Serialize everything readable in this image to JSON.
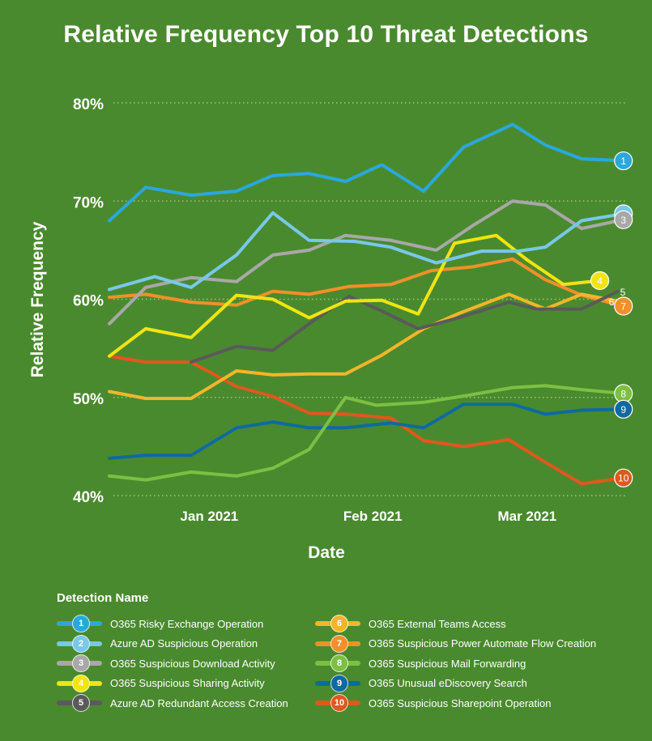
{
  "chart_data": {
    "type": "line",
    "title": "Relative Frequency Top 10 Threat Detections",
    "xlabel": "Date",
    "ylabel": "Relative Frequency",
    "ylim": [
      40,
      80
    ],
    "yticks": [
      "40%",
      "50%",
      "60%",
      "70%",
      "80%"
    ],
    "ytick_values": [
      40,
      50,
      60,
      70,
      80
    ],
    "xticks": [
      "Jan 2021",
      "Feb 2021",
      "Mar 2021"
    ],
    "xtick_positions": [
      5.5,
      14.5,
      23.0
    ],
    "x": [
      0,
      1,
      2,
      3,
      4,
      5,
      6,
      7,
      8,
      9,
      10,
      11,
      12,
      13,
      14,
      15,
      16,
      17,
      18,
      19,
      20,
      21,
      22,
      23,
      24,
      25,
      26,
      27,
      28
    ],
    "grid": "horizontal dotted",
    "legend_title": "Detection Name",
    "series": [
      {
        "rank": "1",
        "name": "O365 Risky Exchange Operation",
        "color": "#2aa8dc",
        "points": [
          [
            0,
            68
          ],
          [
            2,
            71.4
          ],
          [
            4.5,
            70.6
          ],
          [
            7,
            71
          ],
          [
            9,
            72.6
          ],
          [
            11,
            72.8
          ],
          [
            13,
            72
          ],
          [
            15,
            73.7
          ],
          [
            17.3,
            71
          ],
          [
            19.5,
            75.5
          ],
          [
            22.2,
            77.8
          ],
          [
            24,
            75.7
          ],
          [
            26,
            74.3
          ],
          [
            28.3,
            74.1
          ]
        ]
      },
      {
        "rank": "2",
        "name": "Azure AD Suspicious Operation",
        "color": "#78c8ea",
        "points": [
          [
            0,
            61
          ],
          [
            2.5,
            62.3
          ],
          [
            4.5,
            61.2
          ],
          [
            7,
            64.5
          ],
          [
            9,
            68.8
          ],
          [
            11,
            66
          ],
          [
            13.5,
            65.9
          ],
          [
            15.5,
            65.3
          ],
          [
            18,
            63.7
          ],
          [
            20.5,
            64.9
          ],
          [
            22.5,
            64.9
          ],
          [
            24,
            65.3
          ],
          [
            26,
            68
          ],
          [
            28.3,
            68.7
          ]
        ]
      },
      {
        "rank": "3",
        "name": "O365 Suspicious Download Activity",
        "color": "#a8a8a8",
        "points": [
          [
            0,
            57.5
          ],
          [
            2,
            61.2
          ],
          [
            4.5,
            62.2
          ],
          [
            7,
            61.8
          ],
          [
            9,
            64.5
          ],
          [
            11,
            65
          ],
          [
            13,
            66.5
          ],
          [
            15.5,
            66
          ],
          [
            18,
            65
          ],
          [
            20,
            67.5
          ],
          [
            22.2,
            70
          ],
          [
            24,
            69.6
          ],
          [
            26,
            67.2
          ],
          [
            28.3,
            68.1
          ]
        ]
      },
      {
        "rank": "4",
        "name": "O365 Suspicious Sharing Activity",
        "color": "#f2e410",
        "points": [
          [
            0,
            54.2
          ],
          [
            2,
            57
          ],
          [
            4.5,
            56.1
          ],
          [
            7,
            60.4
          ],
          [
            9,
            60
          ],
          [
            11,
            58.1
          ],
          [
            13,
            59.8
          ],
          [
            15,
            59.9
          ],
          [
            17,
            58.5
          ],
          [
            19,
            65.7
          ],
          [
            21.3,
            66.5
          ],
          [
            23,
            64
          ],
          [
            25,
            61.5
          ],
          [
            27,
            61.9
          ]
        ]
      },
      {
        "rank": "5",
        "name": "Azure AD Redundant Access Creation",
        "color": "#5a5a5a",
        "points": [
          [
            4.5,
            53.6
          ],
          [
            7,
            55.2
          ],
          [
            9,
            54.8
          ],
          [
            11,
            57.5
          ],
          [
            13.2,
            60.3
          ],
          [
            15,
            58.8
          ],
          [
            17,
            57
          ],
          [
            19,
            58
          ],
          [
            22,
            59.7
          ],
          [
            23.5,
            59
          ],
          [
            26,
            59
          ],
          [
            28,
            60.8
          ]
        ]
      },
      {
        "rank": "6",
        "name": "O365 External Teams Access",
        "color": "#f4b52a",
        "points": [
          [
            0,
            50.6
          ],
          [
            2,
            49.9
          ],
          [
            4.5,
            49.9
          ],
          [
            7,
            52.7
          ],
          [
            9,
            52.3
          ],
          [
            11,
            52.4
          ],
          [
            13,
            52.4
          ],
          [
            15,
            54.3
          ],
          [
            17.3,
            57
          ],
          [
            19.3,
            58.6
          ],
          [
            22,
            60.5
          ],
          [
            24,
            59
          ],
          [
            26,
            60.5
          ],
          [
            28,
            59.8
          ]
        ]
      },
      {
        "rank": "7",
        "name": "O365 Suspicious Power Automate Flow Creation",
        "color": "#f0902a",
        "points": [
          [
            0,
            60.2
          ],
          [
            2,
            60.5
          ],
          [
            4.5,
            59.7
          ],
          [
            7,
            59.4
          ],
          [
            9,
            60.8
          ],
          [
            11,
            60.5
          ],
          [
            13.2,
            61.3
          ],
          [
            15.5,
            61.5
          ],
          [
            17.7,
            62.9
          ],
          [
            20,
            63.3
          ],
          [
            22.2,
            64.1
          ],
          [
            24,
            62
          ],
          [
            26,
            60.4
          ],
          [
            28.3,
            59.3
          ]
        ]
      },
      {
        "rank": "8",
        "name": "O365 Suspicious Mail Forwarding",
        "color": "#7cc043",
        "points": [
          [
            0,
            42
          ],
          [
            2,
            41.6
          ],
          [
            4.5,
            42.4
          ],
          [
            7,
            42
          ],
          [
            9,
            42.8
          ],
          [
            11,
            44.7
          ],
          [
            13,
            50
          ],
          [
            14.7,
            49.2
          ],
          [
            17.3,
            49.5
          ],
          [
            19.7,
            50.2
          ],
          [
            22.2,
            51
          ],
          [
            24,
            51.2
          ],
          [
            26,
            50.8
          ],
          [
            28.3,
            50.4
          ]
        ]
      },
      {
        "rank": "9",
        "name": "O365 Unusual eDiscovery Search",
        "color": "#0e6aa0",
        "points": [
          [
            0,
            43.8
          ],
          [
            2,
            44.1
          ],
          [
            4.5,
            44.1
          ],
          [
            7,
            46.9
          ],
          [
            9,
            47.5
          ],
          [
            11,
            46.9
          ],
          [
            13,
            46.9
          ],
          [
            15.5,
            47.4
          ],
          [
            17.3,
            46.9
          ],
          [
            19.5,
            49.3
          ],
          [
            22.2,
            49.3
          ],
          [
            24,
            48.3
          ],
          [
            26,
            48.7
          ],
          [
            28.3,
            48.8
          ]
        ]
      },
      {
        "rank": "10",
        "name": "O365 Suspicious Sharepoint Operation",
        "color": "#e0581e",
        "points": [
          [
            0,
            54.2
          ],
          [
            2,
            53.6
          ],
          [
            4.5,
            53.6
          ],
          [
            7,
            51.1
          ],
          [
            9,
            50.1
          ],
          [
            11,
            48.4
          ],
          [
            13,
            48.3
          ],
          [
            15.5,
            47.9
          ],
          [
            17.3,
            45.6
          ],
          [
            19.5,
            45
          ],
          [
            22,
            45.7
          ],
          [
            24,
            43.4
          ],
          [
            26,
            41.2
          ],
          [
            28.3,
            41.8
          ]
        ]
      }
    ]
  }
}
